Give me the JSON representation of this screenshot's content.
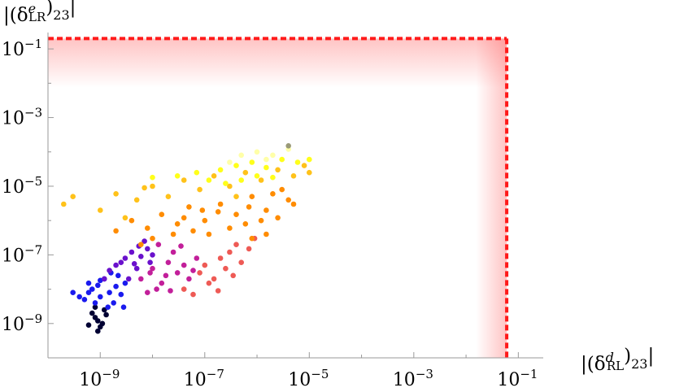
{
  "chart_data": {
    "type": "scatter",
    "title": "",
    "xlabel": "|(δ^d_RL)_23|",
    "ylabel": "|(δ^e_LR)_23|",
    "x_scale": "log",
    "y_scale": "log",
    "xlim": [
      1e-10,
      0.3
    ],
    "ylim": [
      1e-10,
      0.3
    ],
    "x_ticks": [
      {
        "value": 1e-09,
        "base": "10",
        "exp": "−9"
      },
      {
        "value": 1e-07,
        "base": "10",
        "exp": "−7"
      },
      {
        "value": 1e-05,
        "base": "10",
        "exp": "−5"
      },
      {
        "value": 0.001,
        "base": "10",
        "exp": "−3"
      },
      {
        "value": 0.1,
        "base": "10",
        "exp": "−1"
      }
    ],
    "y_ticks": [
      {
        "value": 1e-09,
        "base": "10",
        "exp": "−9"
      },
      {
        "value": 1e-07,
        "base": "10",
        "exp": "−7"
      },
      {
        "value": 1e-05,
        "base": "10",
        "exp": "−5"
      },
      {
        "value": 0.001,
        "base": "10",
        "exp": "−3"
      },
      {
        "value": 0.1,
        "base": "10",
        "exp": "−1"
      }
    ],
    "x_label_parts": {
      "pre": "|(δ",
      "sup": "d",
      "sub": "RL",
      "post": ")",
      "sub2": "23",
      "end": "|"
    },
    "y_label_parts": {
      "pre": "|(δ",
      "sup": "e",
      "sub": "LR",
      "post": ")",
      "sub2": "23",
      "end": "|"
    },
    "bounds": {
      "x_max": 0.06,
      "y_max": 0.2,
      "color": "#ff1a1a",
      "style": "dashed"
    },
    "grid": false,
    "legend": "none",
    "series": [
      {
        "color": "#000033",
        "points": [
          [
            9e-10,
            1.2e-09
          ],
          [
            8e-10,
            1.5e-09
          ],
          [
            1.1e-09,
            1e-09
          ],
          [
            7e-10,
            2e-09
          ],
          [
            1e-09,
            8e-10
          ],
          [
            1.3e-09,
            1.8e-09
          ],
          [
            6e-10,
            9e-10
          ],
          [
            9e-10,
            6e-10
          ],
          [
            1.2e-09,
            2.5e-09
          ],
          [
            8e-10,
            3e-09
          ]
        ]
      },
      {
        "color": "#1a1aee",
        "points": [
          [
            5e-10,
            5e-09
          ],
          [
            7e-10,
            1e-08
          ],
          [
            1e-09,
            6e-09
          ],
          [
            1.5e-09,
            8e-09
          ],
          [
            8e-10,
            4e-09
          ],
          [
            2e-09,
            1.2e-08
          ],
          [
            1.2e-09,
            2e-08
          ],
          [
            6e-10,
            8e-09
          ],
          [
            3e-09,
            1.5e-08
          ],
          [
            1.8e-09,
            4e-09
          ],
          [
            1e-09,
            1.8e-08
          ],
          [
            2.5e-09,
            7e-09
          ],
          [
            4e-10,
            6e-09
          ],
          [
            3e-10,
            8e-09
          ],
          [
            1.4e-09,
            3e-09
          ],
          [
            2.2e-09,
            2.5e-08
          ],
          [
            9e-10,
            1.3e-08
          ],
          [
            2.8e-09,
            3e-09
          ],
          [
            6e-10,
            1.5e-08
          ],
          [
            1.6e-09,
            3e-08
          ]
        ]
      },
      {
        "color": "#6a11cc",
        "points": [
          [
            2e-09,
            5e-08
          ],
          [
            3e-09,
            8e-08
          ],
          [
            5e-09,
            4e-08
          ],
          [
            1.5e-09,
            3.5e-08
          ],
          [
            4e-09,
            1.2e-07
          ],
          [
            6e-09,
            9e-08
          ],
          [
            2.5e-09,
            6e-08
          ],
          [
            8e-09,
            1.5e-07
          ],
          [
            3.5e-09,
            2e-08
          ],
          [
            1e-08,
            1e-07
          ],
          [
            7e-09,
            2.5e-07
          ],
          [
            4.5e-09,
            5.5e-08
          ],
          [
            1.2e-09,
            2e-08
          ],
          [
            9e-09,
            6e-08
          ],
          [
            5.5e-09,
            1.8e-07
          ]
        ]
      },
      {
        "color": "#c21f9a",
        "points": [
          [
            6e-09,
            2e-08
          ],
          [
            1e-08,
            4e-08
          ],
          [
            1.5e-08,
            1.5e-08
          ],
          [
            2e-08,
            6e-08
          ],
          [
            3e-08,
            3e-08
          ],
          [
            1.2e-08,
            1e-08
          ],
          [
            2.5e-08,
            1.2e-07
          ],
          [
            4e-08,
            5e-08
          ],
          [
            8e-09,
            8e-09
          ],
          [
            5e-08,
            2e-08
          ],
          [
            1.8e-08,
            2.5e-08
          ],
          [
            7e-08,
            8e-08
          ],
          [
            3.5e-08,
            1.8e-07
          ],
          [
            2.2e-08,
            9e-09
          ],
          [
            9e-09,
            3e-08
          ],
          [
            1.3e-08,
            2e-07
          ],
          [
            6e-08,
            3.5e-08
          ]
        ]
      },
      {
        "color": "#ee5a55",
        "points": [
          [
            4e-08,
            1e-08
          ],
          [
            8e-08,
            3e-08
          ],
          [
            1.5e-07,
            2e-08
          ],
          [
            2e-07,
            8e-08
          ],
          [
            1e-07,
            5e-08
          ],
          [
            3e-07,
            1.2e-07
          ],
          [
            6e-08,
            7e-09
          ],
          [
            1.2e-07,
            1.5e-08
          ],
          [
            5e-07,
            6e-08
          ],
          [
            2.5e-07,
            4e-08
          ],
          [
            4e-07,
            2e-07
          ],
          [
            7e-07,
            1.5e-07
          ],
          [
            1.8e-07,
            9e-09
          ],
          [
            3.5e-07,
            2.5e-08
          ],
          [
            9e-07,
            3e-07
          ]
        ]
      },
      {
        "color": "#ff8c00",
        "points": [
          [
            2e-09,
            5e-07
          ],
          [
            4e-09,
            1e-06
          ],
          [
            8e-09,
            6e-07
          ],
          [
            1.5e-08,
            1.5e-06
          ],
          [
            3e-08,
            8e-07
          ],
          [
            5e-08,
            2.5e-06
          ],
          [
            1e-07,
            1e-06
          ],
          [
            2e-07,
            3e-06
          ],
          [
            4e-07,
            1.5e-06
          ],
          [
            8e-07,
            5e-06
          ],
          [
            1.5e-06,
            2e-06
          ],
          [
            3e-06,
            8e-06
          ],
          [
            5e-06,
            3e-06
          ],
          [
            1e-08,
            3e-07
          ],
          [
            2.5e-08,
            4e-07
          ],
          [
            6e-08,
            5e-07
          ],
          [
            1.2e-07,
            4e-07
          ],
          [
            3e-07,
            6e-07
          ],
          [
            6e-07,
            8e-07
          ],
          [
            1.2e-06,
            1e-06
          ],
          [
            2.5e-06,
            1.2e-06
          ],
          [
            4e-06,
            4e-06
          ],
          [
            2e-06,
            6e-06
          ],
          [
            7e-07,
            2.5e-06
          ],
          [
            1.8e-07,
            1.8e-06
          ],
          [
            9e-08,
            2e-06
          ],
          [
            4e-08,
            1.2e-06
          ],
          [
            6e-09,
            2e-07
          ],
          [
            1.5e-06,
            4e-07
          ],
          [
            8e-07,
            3e-07
          ]
        ]
      },
      {
        "color": "#ffc21a",
        "points": [
          [
            2e-10,
            3e-06
          ],
          [
            3e-10,
            5e-06
          ],
          [
            1e-09,
            2e-06
          ],
          [
            2e-09,
            6e-06
          ],
          [
            5e-09,
            4e-06
          ],
          [
            1e-08,
            1e-05
          ],
          [
            2e-08,
            5e-06
          ],
          [
            4e-08,
            1.5e-05
          ],
          [
            8e-08,
            8e-06
          ],
          [
            1.5e-07,
            2e-05
          ],
          [
            3e-07,
            1e-05
          ],
          [
            6e-07,
            2.5e-05
          ],
          [
            1.2e-06,
            1.5e-05
          ],
          [
            2.5e-06,
            3e-05
          ],
          [
            5e-06,
            2e-05
          ],
          [
            8e-06,
            4e-05
          ],
          [
            1e-05,
            2.5e-05
          ],
          [
            3e-09,
            1.2e-06
          ],
          [
            7e-09,
            9e-06
          ],
          [
            4e-07,
            5e-06
          ]
        ]
      },
      {
        "color": "#ffff1a",
        "points": [
          [
            1e-08,
            1.8e-05
          ],
          [
            3e-08,
            2e-05
          ],
          [
            7e-08,
            2.5e-05
          ],
          [
            1.2e-07,
            1.5e-05
          ],
          [
            2e-07,
            3e-05
          ],
          [
            4e-07,
            4e-05
          ],
          [
            8e-07,
            5e-05
          ],
          [
            1.5e-06,
            3.5e-05
          ],
          [
            3e-06,
            6e-05
          ],
          [
            6e-06,
            5e-05
          ],
          [
            1e-05,
            6e-05
          ],
          [
            5e-07,
            1.5e-05
          ],
          [
            2.5e-07,
            1.2e-05
          ],
          [
            1e-06,
            2e-05
          ],
          [
            2e-06,
            1.8e-05
          ]
        ]
      },
      {
        "color": "#ffffa8",
        "points": [
          [
            5e-07,
            8e-05
          ],
          [
            1e-06,
            0.0001
          ],
          [
            2e-06,
            8e-05
          ],
          [
            3e-07,
            5e-05
          ],
          [
            1.5e-06,
            6e-05
          ],
          [
            4e-06,
            0.00012
          ]
        ]
      },
      {
        "color": "#9a9a78",
        "points": [
          [
            4e-06,
            0.00015
          ]
        ]
      }
    ]
  }
}
